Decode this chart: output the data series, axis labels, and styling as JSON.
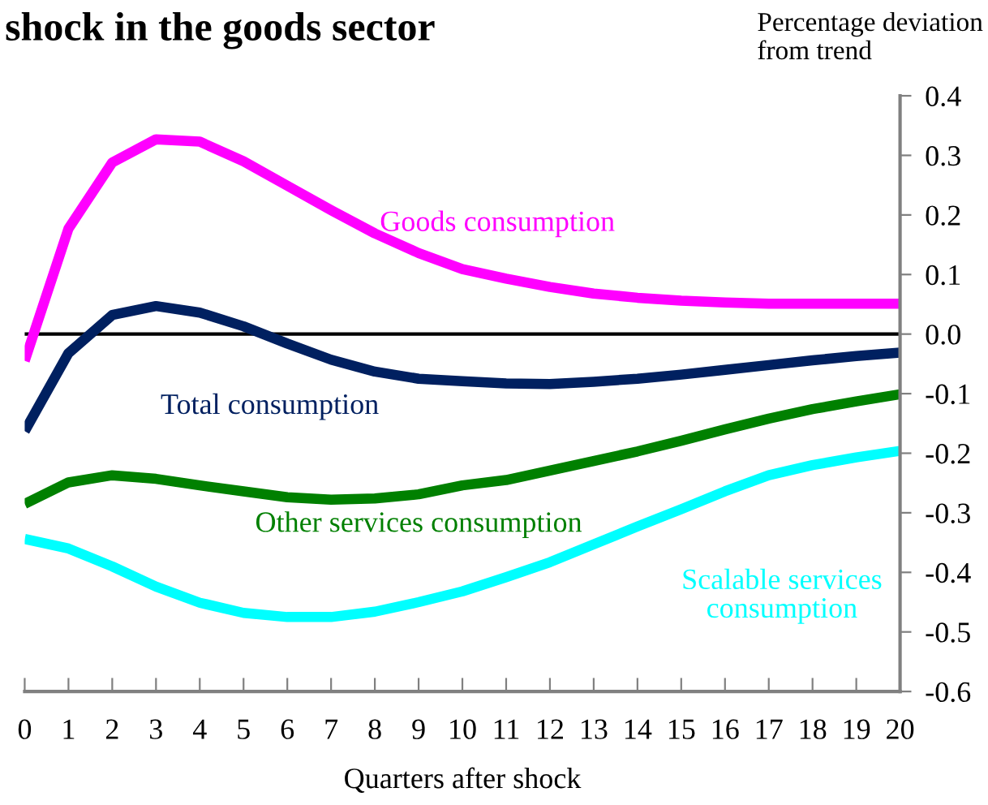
{
  "chart_data": {
    "type": "line",
    "title": "shock in the goods sector",
    "xlabel": "Quarters after shock",
    "ylabel": "Percentage deviation\nfrom trend",
    "x": [
      0,
      1,
      2,
      3,
      4,
      5,
      6,
      7,
      8,
      9,
      10,
      11,
      12,
      13,
      14,
      15,
      16,
      17,
      18,
      19,
      20
    ],
    "series": [
      {
        "name": "Goods consumption",
        "color": "#ff00ff",
        "values": [
          -0.045,
          0.177,
          0.288,
          0.327,
          0.323,
          0.29,
          0.249,
          0.208,
          0.169,
          0.136,
          0.109,
          0.093,
          0.079,
          0.068,
          0.061,
          0.056,
          0.053,
          0.051,
          0.051,
          0.051,
          0.051
        ]
      },
      {
        "name": "Total consumption",
        "color": "#002060",
        "values": [
          -0.163,
          -0.032,
          0.032,
          0.047,
          0.036,
          0.013,
          -0.016,
          -0.043,
          -0.063,
          -0.075,
          -0.079,
          -0.083,
          -0.084,
          -0.08,
          -0.075,
          -0.068,
          -0.06,
          -0.052,
          -0.044,
          -0.037,
          -0.031
        ]
      },
      {
        "name": "Other services consumption",
        "color": "#008000",
        "values": [
          -0.285,
          -0.249,
          -0.237,
          -0.243,
          -0.254,
          -0.264,
          -0.274,
          -0.278,
          -0.276,
          -0.269,
          -0.254,
          -0.245,
          -0.229,
          -0.213,
          -0.197,
          -0.179,
          -0.16,
          -0.142,
          -0.126,
          -0.113,
          -0.101
        ]
      },
      {
        "name": "Scalable services\nconsumption",
        "color": "#00ffff",
        "values": [
          -0.344,
          -0.36,
          -0.39,
          -0.424,
          -0.451,
          -0.468,
          -0.475,
          -0.475,
          -0.466,
          -0.45,
          -0.432,
          -0.408,
          -0.383,
          -0.353,
          -0.323,
          -0.294,
          -0.264,
          -0.237,
          -0.22,
          -0.207,
          -0.196
        ]
      }
    ],
    "xlim": [
      0,
      20
    ],
    "xticks": [
      0,
      1,
      2,
      3,
      4,
      5,
      6,
      7,
      8,
      9,
      10,
      11,
      12,
      13,
      14,
      15,
      16,
      17,
      18,
      19,
      20
    ],
    "ylim": [
      -0.6,
      0.4
    ],
    "yticks": [
      {
        "value": 0.4,
        "label": "0.4"
      },
      {
        "value": 0.3,
        "label": "0.3"
      },
      {
        "value": 0.2,
        "label": "0.2"
      },
      {
        "value": 0.1,
        "label": "0.1"
      },
      {
        "value": 0.0,
        "label": "0.0"
      },
      {
        "value": -0.1,
        "label": "-0.1"
      },
      {
        "value": -0.2,
        "label": "-0.2"
      },
      {
        "value": -0.3,
        "label": "-0.3"
      },
      {
        "value": -0.4,
        "label": "-0.4"
      },
      {
        "value": -0.5,
        "label": "-0.5"
      },
      {
        "value": -0.6,
        "label": "-0.6"
      }
    ],
    "ref_lines": [
      {
        "axis": "y",
        "value": 0,
        "color": "#000000"
      }
    ],
    "grid": false,
    "legend": false,
    "marker": "none",
    "line_style": "solid"
  }
}
